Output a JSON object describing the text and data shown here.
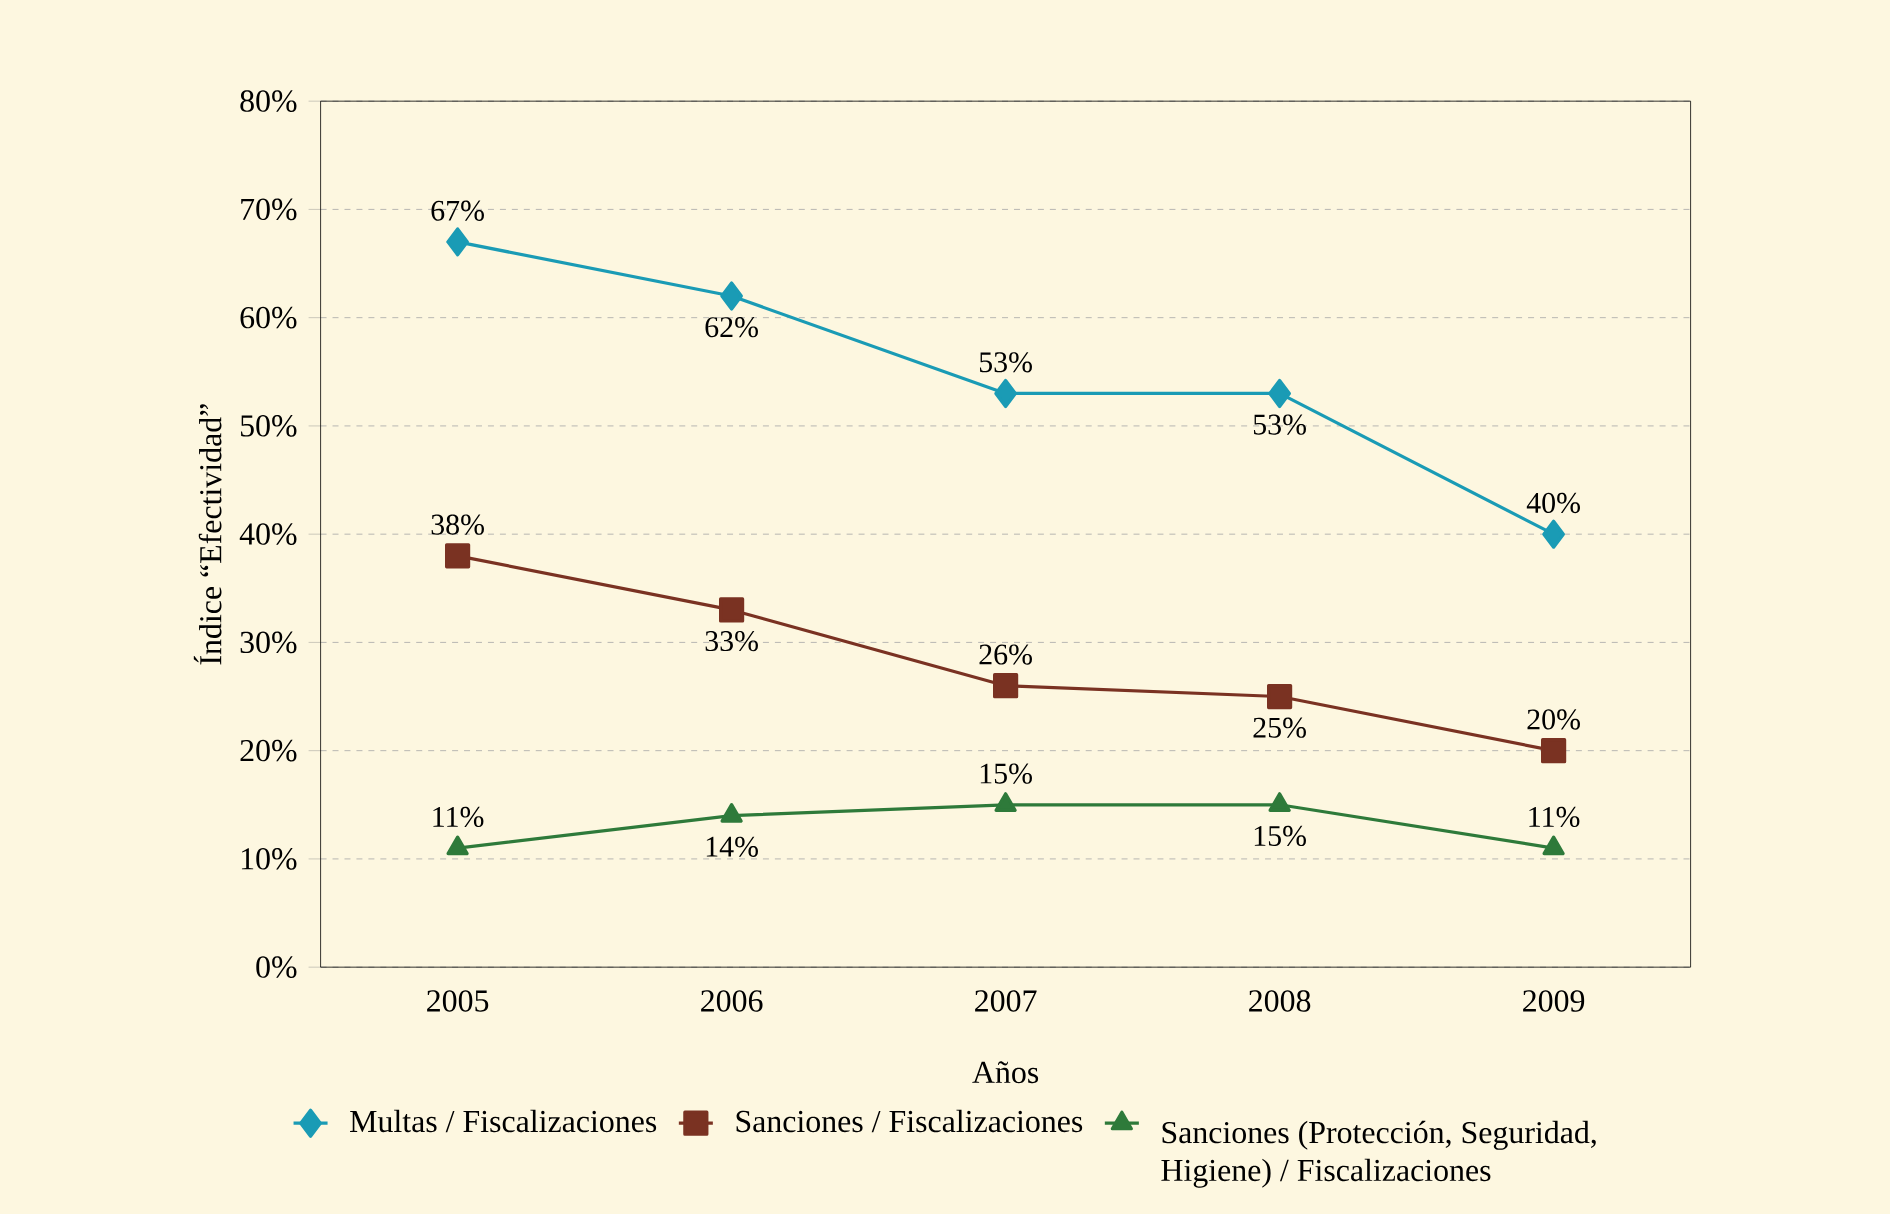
{
  "chart_data": {
    "type": "line",
    "xlabel": "Años",
    "ylabel": "Índice “Efectividad”",
    "categories": [
      "2005",
      "2006",
      "2007",
      "2008",
      "2009"
    ],
    "series": [
      {
        "name": "Multas / Fiscalizaciones",
        "color": "#1a9bb5",
        "marker": "diamond",
        "values": [
          67,
          62,
          53,
          53,
          40
        ],
        "value_labels": [
          "67%",
          "62%",
          "53%",
          "53%",
          "40%"
        ]
      },
      {
        "name": "Sanciones / Fiscalizaciones",
        "color": "#7a3222",
        "marker": "square",
        "values": [
          38,
          33,
          26,
          25,
          20
        ],
        "value_labels": [
          "38%",
          "33%",
          "26%",
          "25%",
          "20%"
        ]
      },
      {
        "name": "Sanciones (Protección, Seguridad, Higiene) / Fiscalizaciones",
        "color": "#2e7a3a",
        "marker": "triangle",
        "values": [
          11,
          14,
          15,
          15,
          11
        ],
        "value_labels": [
          "11%",
          "14%",
          "15%",
          "15%",
          "11%"
        ]
      }
    ],
    "ylim": [
      0,
      80
    ],
    "yticks": [
      {
        "value": 0,
        "label": "0%"
      },
      {
        "value": 10,
        "label": "10%"
      },
      {
        "value": 20,
        "label": "20%"
      },
      {
        "value": 30,
        "label": "30%"
      },
      {
        "value": 40,
        "label": "40%"
      },
      {
        "value": 50,
        "label": "50%"
      },
      {
        "value": 60,
        "label": "60%"
      },
      {
        "value": 70,
        "label": "70%"
      },
      {
        "value": 80,
        "label": "80%"
      }
    ],
    "grid": "y",
    "legend": "bottom",
    "line_style": "solid"
  }
}
